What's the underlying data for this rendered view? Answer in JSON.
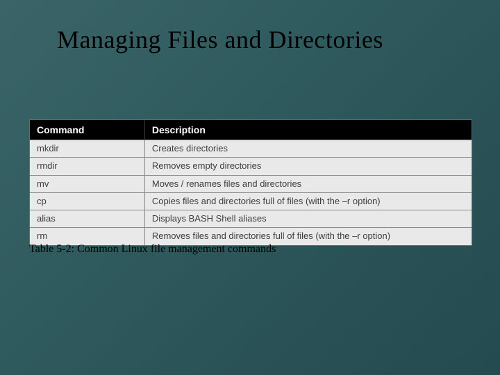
{
  "slide": {
    "title": "Managing Files and Directories",
    "caption": "Table 5-2: Common Linux file management commands",
    "title_fontsize": 36,
    "caption_fontsize": 16,
    "title_color": "#000000",
    "caption_color": "#000000",
    "background_gradient": [
      "#3a6468",
      "#2f5a5e",
      "#2a5256",
      "#244b50"
    ]
  },
  "table": {
    "type": "table",
    "columns": [
      "Command",
      "Description"
    ],
    "column_widths_pct": [
      26,
      74
    ],
    "header_bg": "#000000",
    "header_fg": "#ffffff",
    "cell_bg": "#e9e9e9",
    "cell_fg": "#3e3e3e",
    "border_color": "#888888",
    "header_fontsize": 14,
    "cell_fontsize": 13,
    "rows": [
      {
        "command": "mkdir",
        "description": "Creates directories"
      },
      {
        "command": "rmdir",
        "description": "Removes empty directories"
      },
      {
        "command": "mv",
        "description": "Moves / renames files and directories"
      },
      {
        "command": "cp",
        "description": "Copies files and directories full of files (with the –r option)"
      },
      {
        "command": "alias",
        "description": "Displays BASH Shell aliases"
      },
      {
        "command": "rm",
        "description": "Removes files and directories full of files (with the –r option)"
      }
    ]
  }
}
